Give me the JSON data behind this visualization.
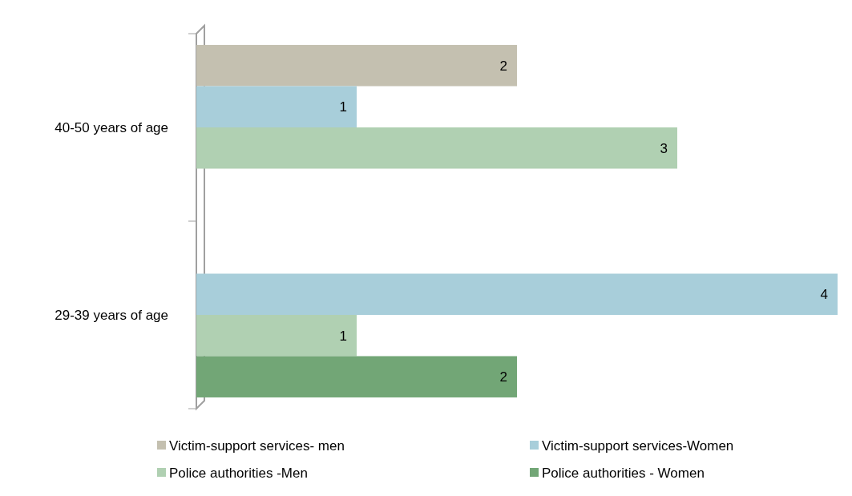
{
  "chart_data": {
    "type": "bar",
    "orientation": "horizontal",
    "categories": [
      "40-50 years of age",
      "29-39 years of age"
    ],
    "series": [
      {
        "name": "Victim-support services- men",
        "color": "#c4c0b0",
        "values": [
          2,
          null
        ]
      },
      {
        "name": "Victim-support services-Women",
        "color": "#a8ceda",
        "values": [
          1,
          4
        ]
      },
      {
        "name": "Police authorities -Men",
        "color": "#b0d0b2",
        "values": [
          3,
          1
        ]
      },
      {
        "name": "Police authorities - Women",
        "color": "#72a676",
        "values": [
          null,
          2
        ]
      }
    ],
    "data_labels": true,
    "legend": "bottom"
  }
}
